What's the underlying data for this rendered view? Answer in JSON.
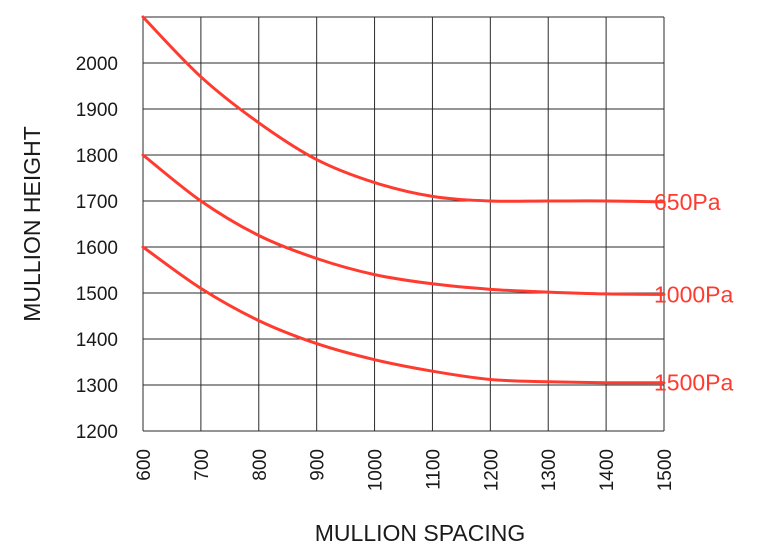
{
  "chart_data": {
    "type": "line",
    "title": "",
    "xlabel": "MULLION SPACING",
    "ylabel": "MULLION HEIGHT",
    "x": [
      600,
      700,
      800,
      900,
      1000,
      1100,
      1200,
      1300,
      1400,
      1500
    ],
    "xlim": [
      600,
      1500
    ],
    "ylim": [
      1200,
      2100
    ],
    "xticks": [
      "600",
      "700",
      "800",
      "900",
      "1000",
      "1100",
      "1200",
      "1300",
      "1400",
      "1500"
    ],
    "yticks": [
      "1200",
      "1300",
      "1400",
      "1500",
      "1600",
      "1700",
      "1800",
      "1900",
      "2000"
    ],
    "grid": true,
    "legend": "none (series labelled at line ends)",
    "series_color": "#ff3b30",
    "series": [
      {
        "name": "650Pa",
        "values": [
          2100,
          1970,
          1870,
          1790,
          1740,
          1710,
          1700,
          1700,
          1700,
          1698
        ]
      },
      {
        "name": "1000Pa",
        "values": [
          1800,
          1700,
          1625,
          1575,
          1540,
          1520,
          1508,
          1502,
          1498,
          1497
        ]
      },
      {
        "name": "1500Pa",
        "values": [
          1600,
          1510,
          1440,
          1390,
          1355,
          1330,
          1312,
          1307,
          1305,
          1305
        ]
      }
    ]
  }
}
